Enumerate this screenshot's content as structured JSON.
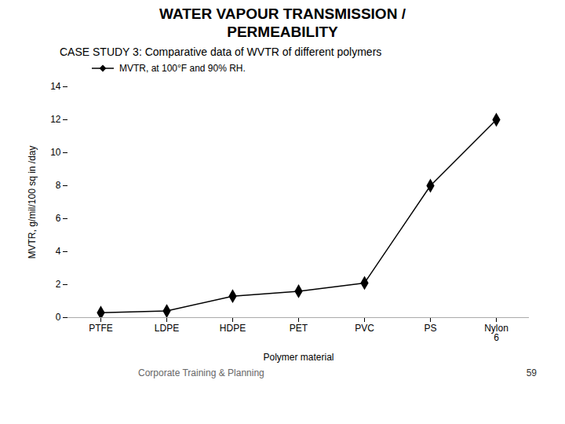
{
  "chart_data": {
    "type": "line",
    "title": "WATER VAPOUR TRANSMISSION /\nPERMEABILITY",
    "subtitle": "CASE STUDY 3: Comparative data of WVTR of different polymers",
    "categories": [
      "PTFE",
      "LDPE",
      "HDPE",
      "PET",
      "PVC",
      "PS",
      "Nylon\n6"
    ],
    "series": [
      {
        "name": "MVTR, at 100°F and 90% RH.",
        "color": "#000000",
        "marker": "diamond",
        "values": [
          0.3,
          0.4,
          1.3,
          1.6,
          2.1,
          8.0,
          12.0
        ]
      }
    ],
    "ylabel": "MVTR, g/mil/100 sq in /day",
    "xlabel": "Polymer material",
    "ylim": [
      0,
      14
    ],
    "yticks": [
      0,
      2,
      4,
      6,
      8,
      10,
      12,
      14
    ],
    "grid": false,
    "legend": "upper left",
    "annotations": [
      "Corporate Training & Planning",
      "59"
    ]
  }
}
